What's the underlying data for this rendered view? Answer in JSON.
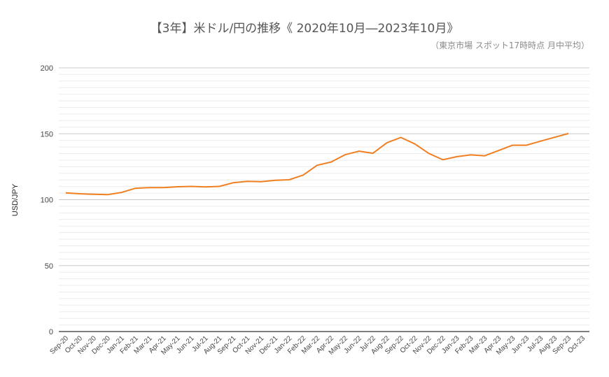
{
  "chart_data": {
    "type": "line",
    "title": "【3年】米ドル/円の推移《 2020年10月―2023年10月》",
    "subtitle": "（東京市場 スポット17時時点 月中平均）",
    "xlabel": "",
    "ylabel": "USD/JPY",
    "ylim": [
      0,
      200
    ],
    "yticks": [
      0,
      50,
      100,
      150,
      200
    ],
    "minor_gridlines_every": 5,
    "grid": true,
    "legend": null,
    "line_color": "#f07f21",
    "categories": [
      "Sep-20",
      "Oct-20",
      "Nov-20",
      "Dec-20",
      "Jan-21",
      "Feb-21",
      "Mar-21",
      "Apr-21",
      "May-21",
      "Jun-21",
      "Jul-21",
      "Aug-21",
      "Sep-21",
      "Oct-21",
      "Nov-21",
      "Dec-21",
      "Jan-22",
      "Feb-22",
      "Mar-22",
      "Apr-22",
      "May-22",
      "Jun-22",
      "Jul-22",
      "Aug-22",
      "Sep-22",
      "Oct-22",
      "Nov-22",
      "Dec-22",
      "Jan-23",
      "Feb-23",
      "Mar-23",
      "Apr-23",
      "May-23",
      "Jun-23",
      "Jul-23",
      "Aug-23",
      "Sep-23",
      "Oct-23"
    ],
    "series": [
      {
        "name": "USD/JPY",
        "values": [
          105.2,
          104.5,
          104.1,
          103.8,
          105.5,
          108.7,
          109.2,
          109.1,
          109.8,
          110.1,
          109.7,
          110.1,
          112.9,
          113.9,
          113.7,
          114.7,
          115.1,
          118.7,
          126.1,
          128.6,
          134.1,
          136.8,
          135.2,
          143.2,
          147.2,
          142.3,
          135.1,
          130.3,
          132.6,
          134.0,
          133.3,
          137.3,
          141.3,
          141.3,
          144.4,
          147.3,
          150.2,
          null
        ]
      }
    ]
  }
}
